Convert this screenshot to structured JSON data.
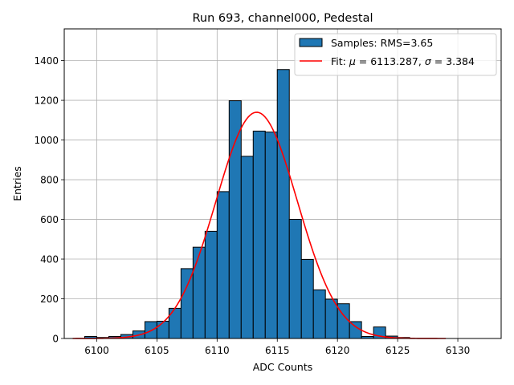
{
  "chart_data": {
    "type": "bar",
    "title": "Run 693, channel000, Pedestal",
    "xlabel": "ADC Counts",
    "ylabel": "Entries",
    "xlim": [
      6097.3,
      6133.6
    ],
    "ylim": [
      0,
      1560
    ],
    "xticks": [
      6100,
      6105,
      6110,
      6115,
      6120,
      6125,
      6130
    ],
    "yticks": [
      0,
      200,
      400,
      600,
      800,
      1000,
      1200,
      1400
    ],
    "grid": true,
    "legend_position": "top-right",
    "histogram": {
      "name": "Samples: RMS=3.65",
      "color": "#1f77b4",
      "bin_width": 1,
      "bin_centers": [
        6099.5,
        6100.5,
        6101.5,
        6102.5,
        6103.5,
        6104.5,
        6105.5,
        6106.5,
        6107.5,
        6108.5,
        6109.5,
        6110.5,
        6111.5,
        6112.5,
        6113.5,
        6114.5,
        6115.5,
        6116.5,
        6117.5,
        6118.5,
        6119.5,
        6120.5,
        6121.5,
        6122.5,
        6123.5,
        6124.5,
        6125.5
      ],
      "values": [
        10,
        5,
        10,
        20,
        38,
        85,
        87,
        152,
        352,
        460,
        540,
        740,
        1198,
        918,
        1045,
        1040,
        1355,
        600,
        398,
        245,
        198,
        175,
        85,
        10,
        58,
        12,
        5
      ]
    },
    "fit": {
      "name": "Fit: μ = 6113.287, σ = 3.384",
      "color": "#ff0000",
      "mu": 6113.287,
      "sigma": 3.384,
      "amplitude": 1140,
      "x_range": [
        6098,
        6129
      ]
    }
  },
  "legend": {
    "samples_label": "Samples: RMS=3.65",
    "fit_label_prefix": "Fit: ",
    "fit_mu_symbol": "μ",
    "fit_mu_value": " = 6113.287, ",
    "fit_sigma_symbol": "σ",
    "fit_sigma_value": " = 3.384"
  }
}
